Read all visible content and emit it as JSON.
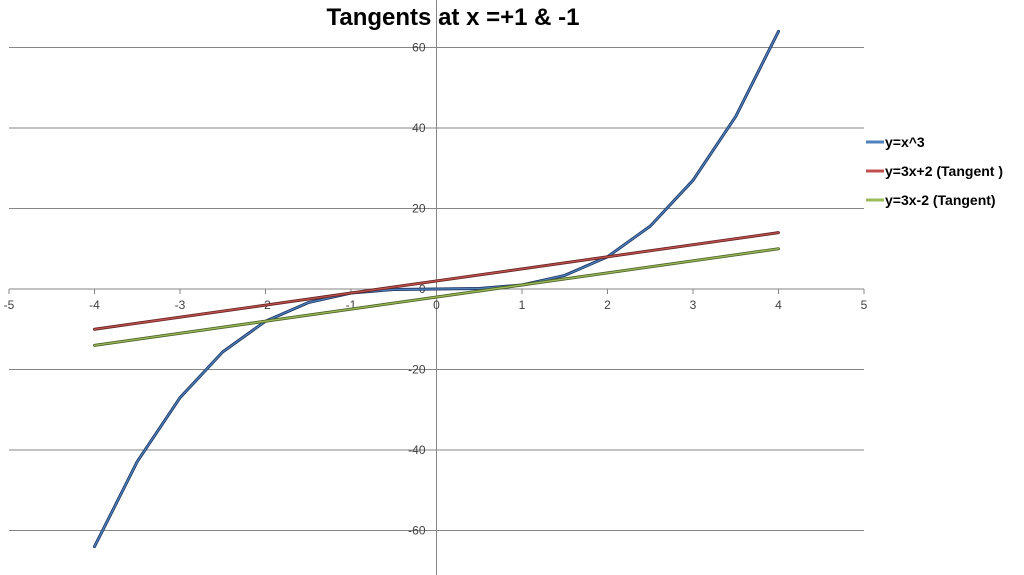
{
  "chart_data": {
    "type": "line",
    "title": "Tangents at x =+1 & -1",
    "xlabel": "",
    "ylabel": "",
    "xlim": [
      -5,
      5
    ],
    "ylim": [
      -70,
      70
    ],
    "x_ticks": [
      -5,
      -4,
      -3,
      -2,
      -1,
      0,
      1,
      2,
      3,
      4,
      5
    ],
    "y_ticks": [
      60,
      40,
      20,
      0,
      -20,
      -40,
      -60
    ],
    "x_tick_labels": [
      "-5",
      "-4",
      "-3",
      "-2",
      "-1",
      "0",
      "1",
      "2",
      "3",
      "4",
      "5"
    ],
    "y_tick_labels": [
      "60",
      "40",
      "20",
      "0",
      "-20",
      "-40",
      "-60"
    ],
    "grid": "horizontal",
    "legend_position": "right",
    "series": [
      {
        "name": "y=x^3",
        "color": "#4F81BD",
        "x": [
          -4,
          -3.5,
          -3,
          -2.5,
          -2,
          -1.5,
          -1,
          -0.5,
          0,
          0.5,
          1,
          1.5,
          2,
          2.5,
          3,
          3.5,
          4
        ],
        "y": [
          -64,
          -42.875,
          -27,
          -15.625,
          -8,
          -3.375,
          -1,
          -0.125,
          0,
          0.125,
          1,
          3.375,
          8,
          15.625,
          27,
          42.875,
          64
        ]
      },
      {
        "name": "y=3x+2 (Tangent )",
        "color": "#C0504D",
        "x": [
          -4,
          4
        ],
        "y": [
          -10,
          14
        ]
      },
      {
        "name": "y=3x-2 (Tangent)",
        "color": "#9BBB59",
        "x": [
          -4,
          4
        ],
        "y": [
          -14,
          10
        ]
      }
    ]
  }
}
